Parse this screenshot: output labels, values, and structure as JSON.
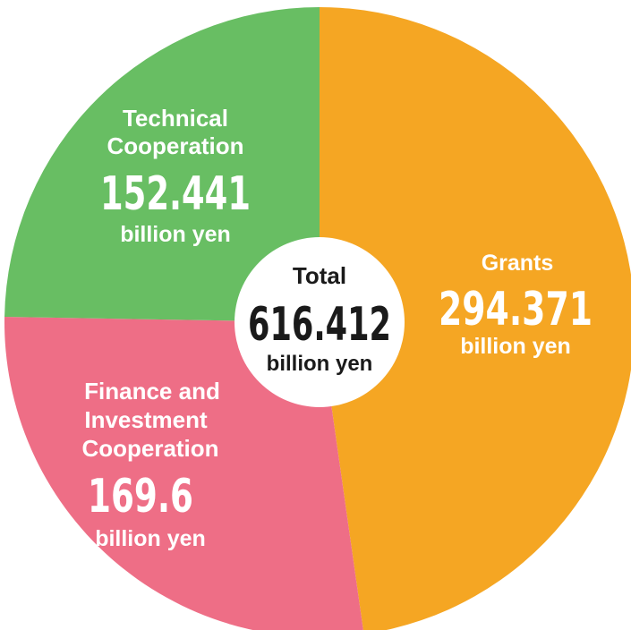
{
  "chart_data": {
    "type": "pie",
    "slices": [
      {
        "label": "Grants",
        "label_lines": [
          "Grants"
        ],
        "value": 294.371,
        "value_text": "294.371",
        "unit": "billion yen",
        "color": "#f5a623"
      },
      {
        "label": "Finance and Investment Cooperation",
        "label_lines": [
          "Finance and",
          "Investment",
          "Cooperation"
        ],
        "value": 169.6,
        "value_text": "169.6",
        "unit": "billion yen",
        "color": "#ee6e86"
      },
      {
        "label": "Technical Cooperation",
        "label_lines": [
          "Technical",
          "Cooperation"
        ],
        "value": 152.441,
        "value_text": "152.441",
        "unit": "billion yen",
        "color": "#68be63"
      }
    ],
    "total": {
      "label": "Total",
      "value": 616.412,
      "value_text": "616.412",
      "unit": "billion yen"
    }
  }
}
